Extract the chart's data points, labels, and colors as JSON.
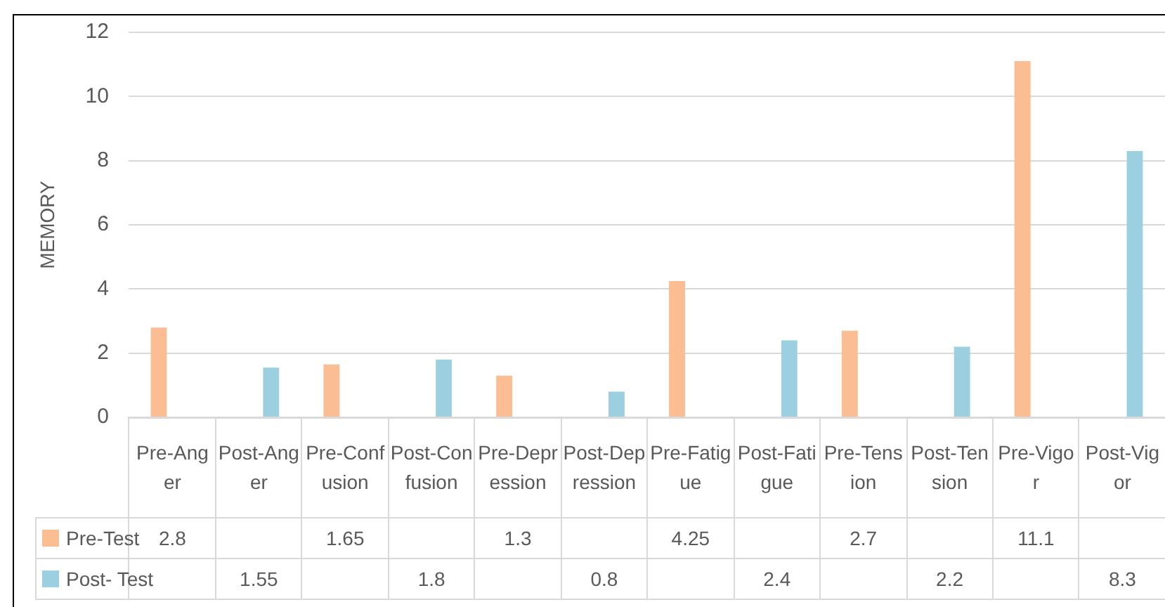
{
  "chart_data": {
    "type": "bar",
    "ylabel": "MEMORY",
    "categories": [
      "Pre-Anger",
      "Post-Anger",
      "Pre-Confusion",
      "Post-Confusion",
      "Pre-Depression",
      "Post-Depression",
      "Pre-Fatigue",
      "Post-Fatigue",
      "Pre-Tension",
      "Post-Tension",
      "Pre-Vigor",
      "Post-Vigor"
    ],
    "series": [
      {
        "name": "Pre-Test",
        "color": "#fbbe93",
        "values": [
          2.8,
          null,
          1.65,
          null,
          1.3,
          null,
          4.25,
          null,
          2.7,
          null,
          11.1,
          null
        ]
      },
      {
        "name": "Post- Test",
        "color": "#9ccfe0",
        "values": [
          null,
          1.55,
          null,
          1.8,
          null,
          0.8,
          null,
          2.4,
          null,
          2.2,
          null,
          8.3
        ]
      }
    ],
    "ylim": [
      0,
      12
    ],
    "yticks": [
      0,
      2,
      4,
      6,
      8,
      10,
      12
    ],
    "grid": "y",
    "legend": "bottom",
    "data_labels": true
  }
}
